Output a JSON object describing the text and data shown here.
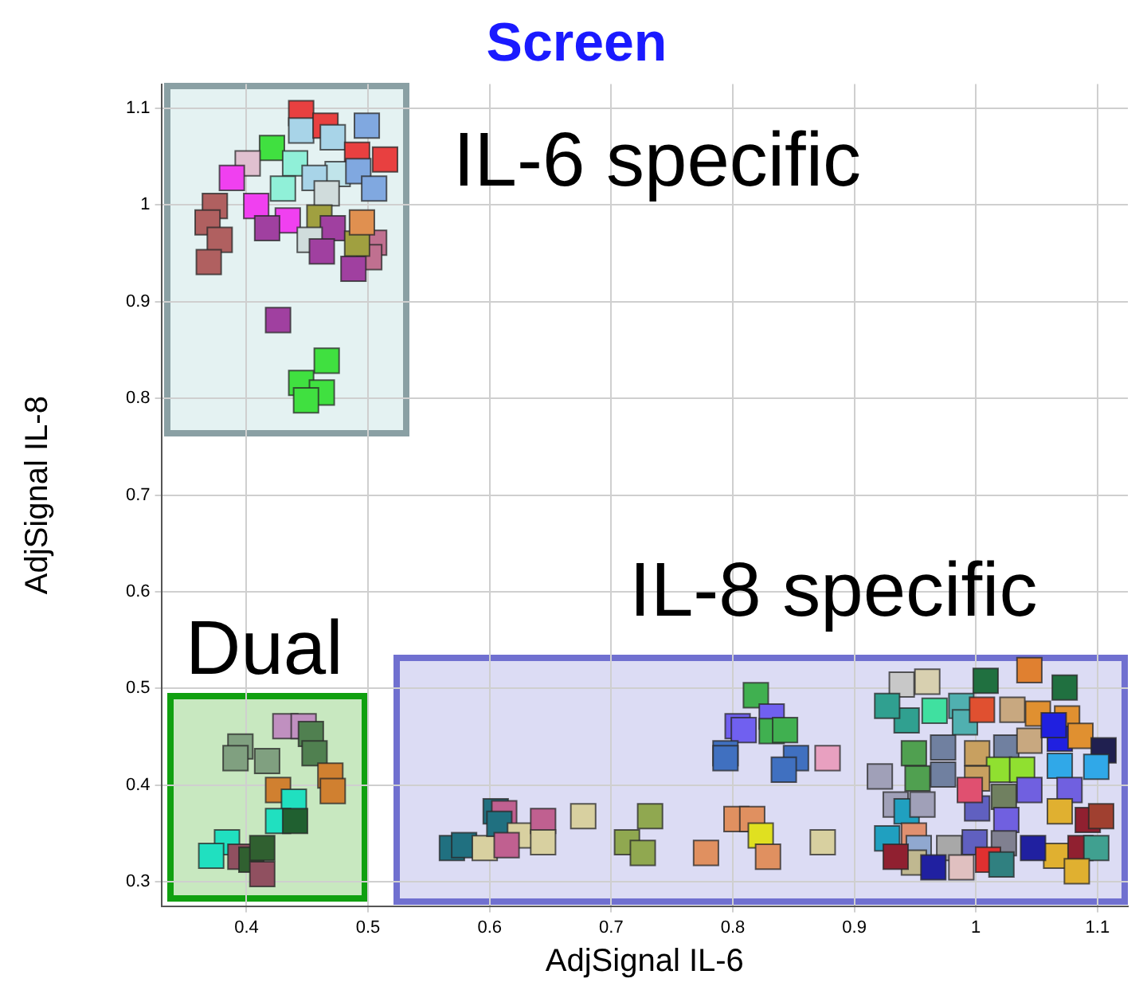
{
  "chart_data": {
    "type": "scatter",
    "title": "Screen",
    "xlabel": "AdjSignal IL-6",
    "ylabel": "AdjSignal IL-8",
    "annotations": [
      "IL-6 specific",
      "IL-8 specific",
      "Dual"
    ],
    "xlim": [
      0.33,
      1.125
    ],
    "ylim": [
      0.275,
      1.125
    ],
    "xticks": [
      0.4,
      0.5,
      0.6,
      0.7,
      0.8,
      0.9,
      1,
      1.1
    ],
    "yticks": [
      0.3,
      0.4,
      0.5,
      0.6,
      0.7,
      0.8,
      0.9,
      1,
      1.1
    ],
    "grid": true,
    "legend": false,
    "marker": "square",
    "series": [
      {
        "x": [
          0.445,
          0.445,
          0.465,
          0.499,
          0.471,
          0.421,
          0.514,
          0.491,
          0.401,
          0.44,
          0.388,
          0.475,
          0.492,
          0.456,
          0.43,
          0.505,
          0.466,
          0.374,
          0.408,
          0.434,
          0.46,
          0.368,
          0.471,
          0.417,
          0.378,
          0.452,
          0.462,
          0.505,
          0.501,
          0.491,
          0.369,
          0.488,
          0.495,
          0.426,
          0.466,
          0.445,
          0.462,
          0.449,
          0.432,
          0.447,
          0.395,
          0.391,
          0.417,
          0.453,
          0.456,
          0.426,
          0.469,
          0.471,
          0.439,
          0.426,
          0.44,
          0.384,
          0.371,
          0.395,
          0.404,
          0.413,
          0.413,
          0.569,
          0.579,
          0.596,
          0.605,
          0.612,
          0.608,
          0.625,
          0.614,
          0.644,
          0.644,
          0.677,
          0.713,
          0.726,
          0.732,
          0.778,
          0.803,
          0.816,
          0.823,
          0.829,
          0.874,
          0.819,
          0.804,
          0.832,
          0.809,
          0.794,
          0.794,
          0.832,
          0.843,
          0.852,
          0.842,
          0.878,
          1.044,
          1.008,
          1.073,
          0.939,
          0.96,
          0.943,
          0.966,
          0.988,
          0.991,
          1.005,
          1.03,
          1.051,
          1.075,
          1.069,
          1.086,
          1.105,
          0.949,
          0.973,
          1.001,
          1.025,
          1.044,
          1.019,
          1.038,
          1.069,
          1.099,
          0.921,
          0.952,
          0.973,
          1.001,
          1.044,
          1.077,
          0.934,
          0.943,
          0.956,
          1.001,
          1.023,
          1.025,
          1.069,
          1.092,
          1.103,
          0.927,
          0.949,
          0.953,
          0.978,
          0.999,
          1.023,
          1.066,
          1.086,
          1.099,
          1.047,
          1.01,
          0.949,
          0.988,
          0.965,
          0.934,
          1.083,
          1.021,
          1.064,
          0.927,
          0.995
        ],
        "values": [
          1.095,
          1.077,
          1.082,
          1.082,
          1.07,
          1.059,
          1.047,
          1.052,
          1.043,
          1.043,
          1.028,
          1.032,
          1.035,
          1.028,
          1.017,
          1.017,
          1.012,
          0.999,
          0.999,
          0.984,
          0.987,
          0.982,
          0.976,
          0.976,
          0.964,
          0.964,
          0.952,
          0.961,
          0.946,
          0.96,
          0.941,
          0.934,
          0.982,
          0.881,
          0.839,
          0.816,
          0.806,
          0.798,
          0.461,
          0.461,
          0.44,
          0.428,
          0.425,
          0.453,
          0.433,
          0.395,
          0.41,
          0.394,
          0.383,
          0.363,
          0.363,
          0.341,
          0.327,
          0.326,
          0.323,
          0.335,
          0.308,
          0.335,
          0.338,
          0.335,
          0.373,
          0.371,
          0.36,
          0.348,
          0.338,
          0.363,
          0.341,
          0.368,
          0.341,
          0.33,
          0.368,
          0.33,
          0.365,
          0.365,
          0.348,
          0.326,
          0.341,
          0.493,
          0.461,
          0.471,
          0.457,
          0.433,
          0.428,
          0.456,
          0.457,
          0.428,
          0.416,
          0.428,
          0.519,
          0.508,
          0.501,
          0.504,
          0.507,
          0.467,
          0.477,
          0.482,
          0.465,
          0.478,
          0.478,
          0.474,
          0.469,
          0.448,
          0.451,
          0.436,
          0.433,
          0.439,
          0.433,
          0.439,
          0.446,
          0.416,
          0.416,
          0.42,
          0.419,
          0.409,
          0.407,
          0.411,
          0.407,
          0.395,
          0.395,
          0.38,
          0.373,
          0.38,
          0.376,
          0.388,
          0.364,
          0.373,
          0.364,
          0.368,
          0.345,
          0.348,
          0.335,
          0.335,
          0.341,
          0.34,
          0.327,
          0.335,
          0.335,
          0.335,
          0.323,
          0.32,
          0.315,
          0.315,
          0.326,
          0.311,
          0.318,
          0.462,
          0.482,
          0.395
        ],
        "colors": [
          "#e84040",
          "#a8d4e8",
          "#e84040",
          "#80a8e0",
          "#a8d4e8",
          "#40e040",
          "#e84040",
          "#e84040",
          "#e0c0d0",
          "#90f0d8",
          "#f040f0",
          "#c0e4ea",
          "#80a8e0",
          "#a8d4e8",
          "#90f0d8",
          "#80a8e0",
          "#d0dcdc",
          "#b06060",
          "#f040f0",
          "#f040f0",
          "#a0a040",
          "#b06060",
          "#a040a0",
          "#a040a0",
          "#b06060",
          "#d0dcdc",
          "#a040a0",
          "#c07090",
          "#c07090",
          "#a0a040",
          "#b06060",
          "#a040a0",
          "#e09050",
          "#a040a0",
          "#40e040",
          "#40e040",
          "#40e040",
          "#40e040",
          "#c090c0",
          "#c090c0",
          "#80a080",
          "#80a080",
          "#80a080",
          "#508050",
          "#508050",
          "#d08030",
          "#d08030",
          "#d08030",
          "#20e0c0",
          "#20e0c0",
          "#206030",
          "#20e0c0",
          "#20e0c0",
          "#905060",
          "#306030",
          "#306030",
          "#905060",
          "#207080",
          "#207080",
          "#d8d0a0",
          "#207080",
          "#c06090",
          "#207080",
          "#d8d0a0",
          "#c06090",
          "#c06090",
          "#d8d0a0",
          "#d8d0a0",
          "#90a850",
          "#90a850",
          "#90a850",
          "#e09060",
          "#e09060",
          "#e09060",
          "#e0e020",
          "#e09060",
          "#d8d0a0",
          "#40b050",
          "#7060f0",
          "#7060f0",
          "#7060f0",
          "#4070c0",
          "#4070c0",
          "#40b050",
          "#40b050",
          "#4070c0",
          "#4070c0",
          "#e8a0c0",
          "#e08030",
          "#207040",
          "#207040",
          "#c8c8c8",
          "#d8d0b0",
          "#30a090",
          "#40e0a0",
          "#50b0b0",
          "#50b0b0",
          "#e05030",
          "#c8a880",
          "#e09030",
          "#e09030",
          "#2020e0",
          "#e09030",
          "#202050",
          "#50a050",
          "#7080a0",
          "#c8a060",
          "#7080a0",
          "#c8a880",
          "#90e030",
          "#90e030",
          "#30a8e8",
          "#30a8e8",
          "#a0a0b8",
          "#50a050",
          "#7080a0",
          "#c8a060",
          "#7060e0",
          "#7060e0",
          "#a0a0b8",
          "#20a0c0",
          "#a0a0b8",
          "#6060c0",
          "#708060",
          "#7060e0",
          "#e0b030",
          "#902030",
          "#a04030",
          "#20a0c0",
          "#e09070",
          "#90a8d0",
          "#a8a8a8",
          "#6060c0",
          "#808090",
          "#e0b030",
          "#902030",
          "#40a090",
          "#2020a0",
          "#e03030",
          "#c0b890",
          "#e0c0c0",
          "#2020a0",
          "#902030",
          "#e0b030",
          "#308080",
          "#2020e0",
          "#30a090",
          "#e05070"
        ]
      }
    ]
  }
}
